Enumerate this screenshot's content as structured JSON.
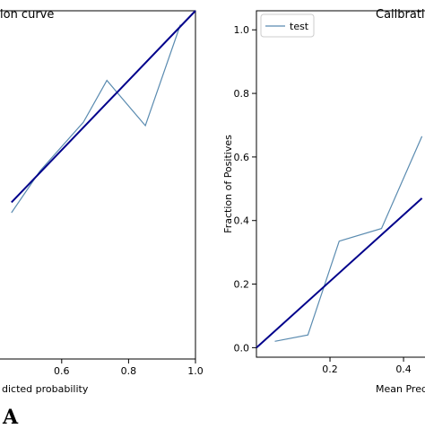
{
  "figure_label": "A",
  "chart_data": [
    {
      "type": "line",
      "title": "ion curve",
      "xlabel": "dicted probability",
      "ylabel": "",
      "xlim": [
        0.0,
        1.0
      ],
      "x_ticks": [
        "0.6",
        "0.8",
        "1.0"
      ],
      "x_tick_values": [
        0.6,
        0.8,
        1.0
      ],
      "y_ticks": [],
      "grid": false,
      "series": [
        {
          "color": "#5a8bb0",
          "x": [
            0.45,
            0.535,
            0.665,
            0.735,
            0.85,
            0.955
          ],
          "y": [
            0.42,
            0.54,
            0.68,
            0.8,
            0.67,
            0.96
          ]
        },
        {
          "color": "#00008b",
          "x": [
            0.45,
            1.0
          ],
          "y": [
            0.45,
            1.0
          ]
        }
      ]
    },
    {
      "type": "line",
      "title": "Calibrati",
      "xlabel": "Mean Predi",
      "ylabel": "Fraction of Positives",
      "ylim": [
        -0.03,
        1.06
      ],
      "y_ticks": [
        "0.0",
        "0.2",
        "0.4",
        "0.6",
        "0.8",
        "1.0"
      ],
      "y_tick_values": [
        0.0,
        0.2,
        0.4,
        0.6,
        0.8,
        1.0
      ],
      "x_ticks": [
        "0.2",
        "0.4"
      ],
      "x_tick_values": [
        0.2,
        0.4
      ],
      "grid": false,
      "legend": "top-left",
      "series": [
        {
          "name": "test",
          "color": "#5a8bb0",
          "x": [
            0.05,
            0.14,
            0.225,
            0.34,
            0.45
          ],
          "y": [
            0.02,
            0.04,
            0.335,
            0.375,
            0.665
          ]
        },
        {
          "color": "#00008b",
          "x": [
            0.0,
            0.45
          ],
          "y": [
            0.0,
            0.47
          ]
        }
      ]
    }
  ]
}
